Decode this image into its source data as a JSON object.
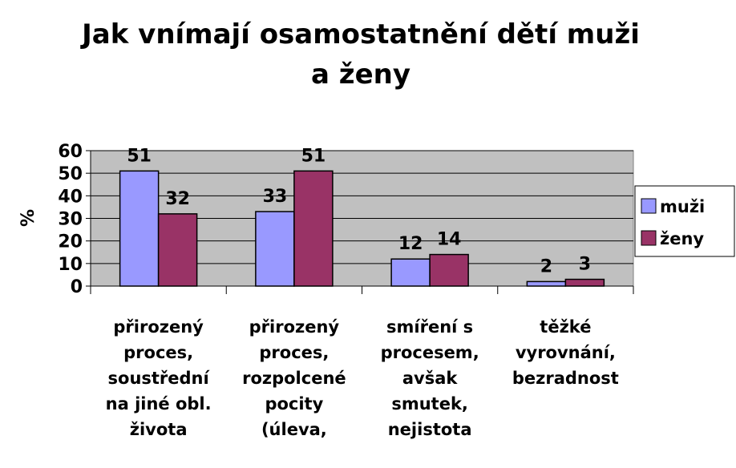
{
  "chart_data": {
    "type": "bar",
    "title": "Jak vnímají osamostatnění dětí muži a ženy",
    "ylabel": "%",
    "categories": [
      "přirozený proces, soustřední na jiné obl. života",
      "přirozený proces, rozpolcené pocity (úleva,",
      "smíření s procesem, avšak smutek, nejistota",
      "těžké vyrovnání, bezradnost"
    ],
    "series": [
      {
        "name": "muži",
        "color": "#9999ff",
        "values": [
          51,
          33,
          12,
          2
        ]
      },
      {
        "name": "ženy",
        "color": "#993366",
        "values": [
          32,
          51,
          14,
          3
        ]
      }
    ],
    "ylim": [
      0,
      60
    ],
    "yticks": [
      0,
      10,
      20,
      30,
      40,
      50,
      60
    ],
    "grid": true,
    "legend": "right"
  }
}
